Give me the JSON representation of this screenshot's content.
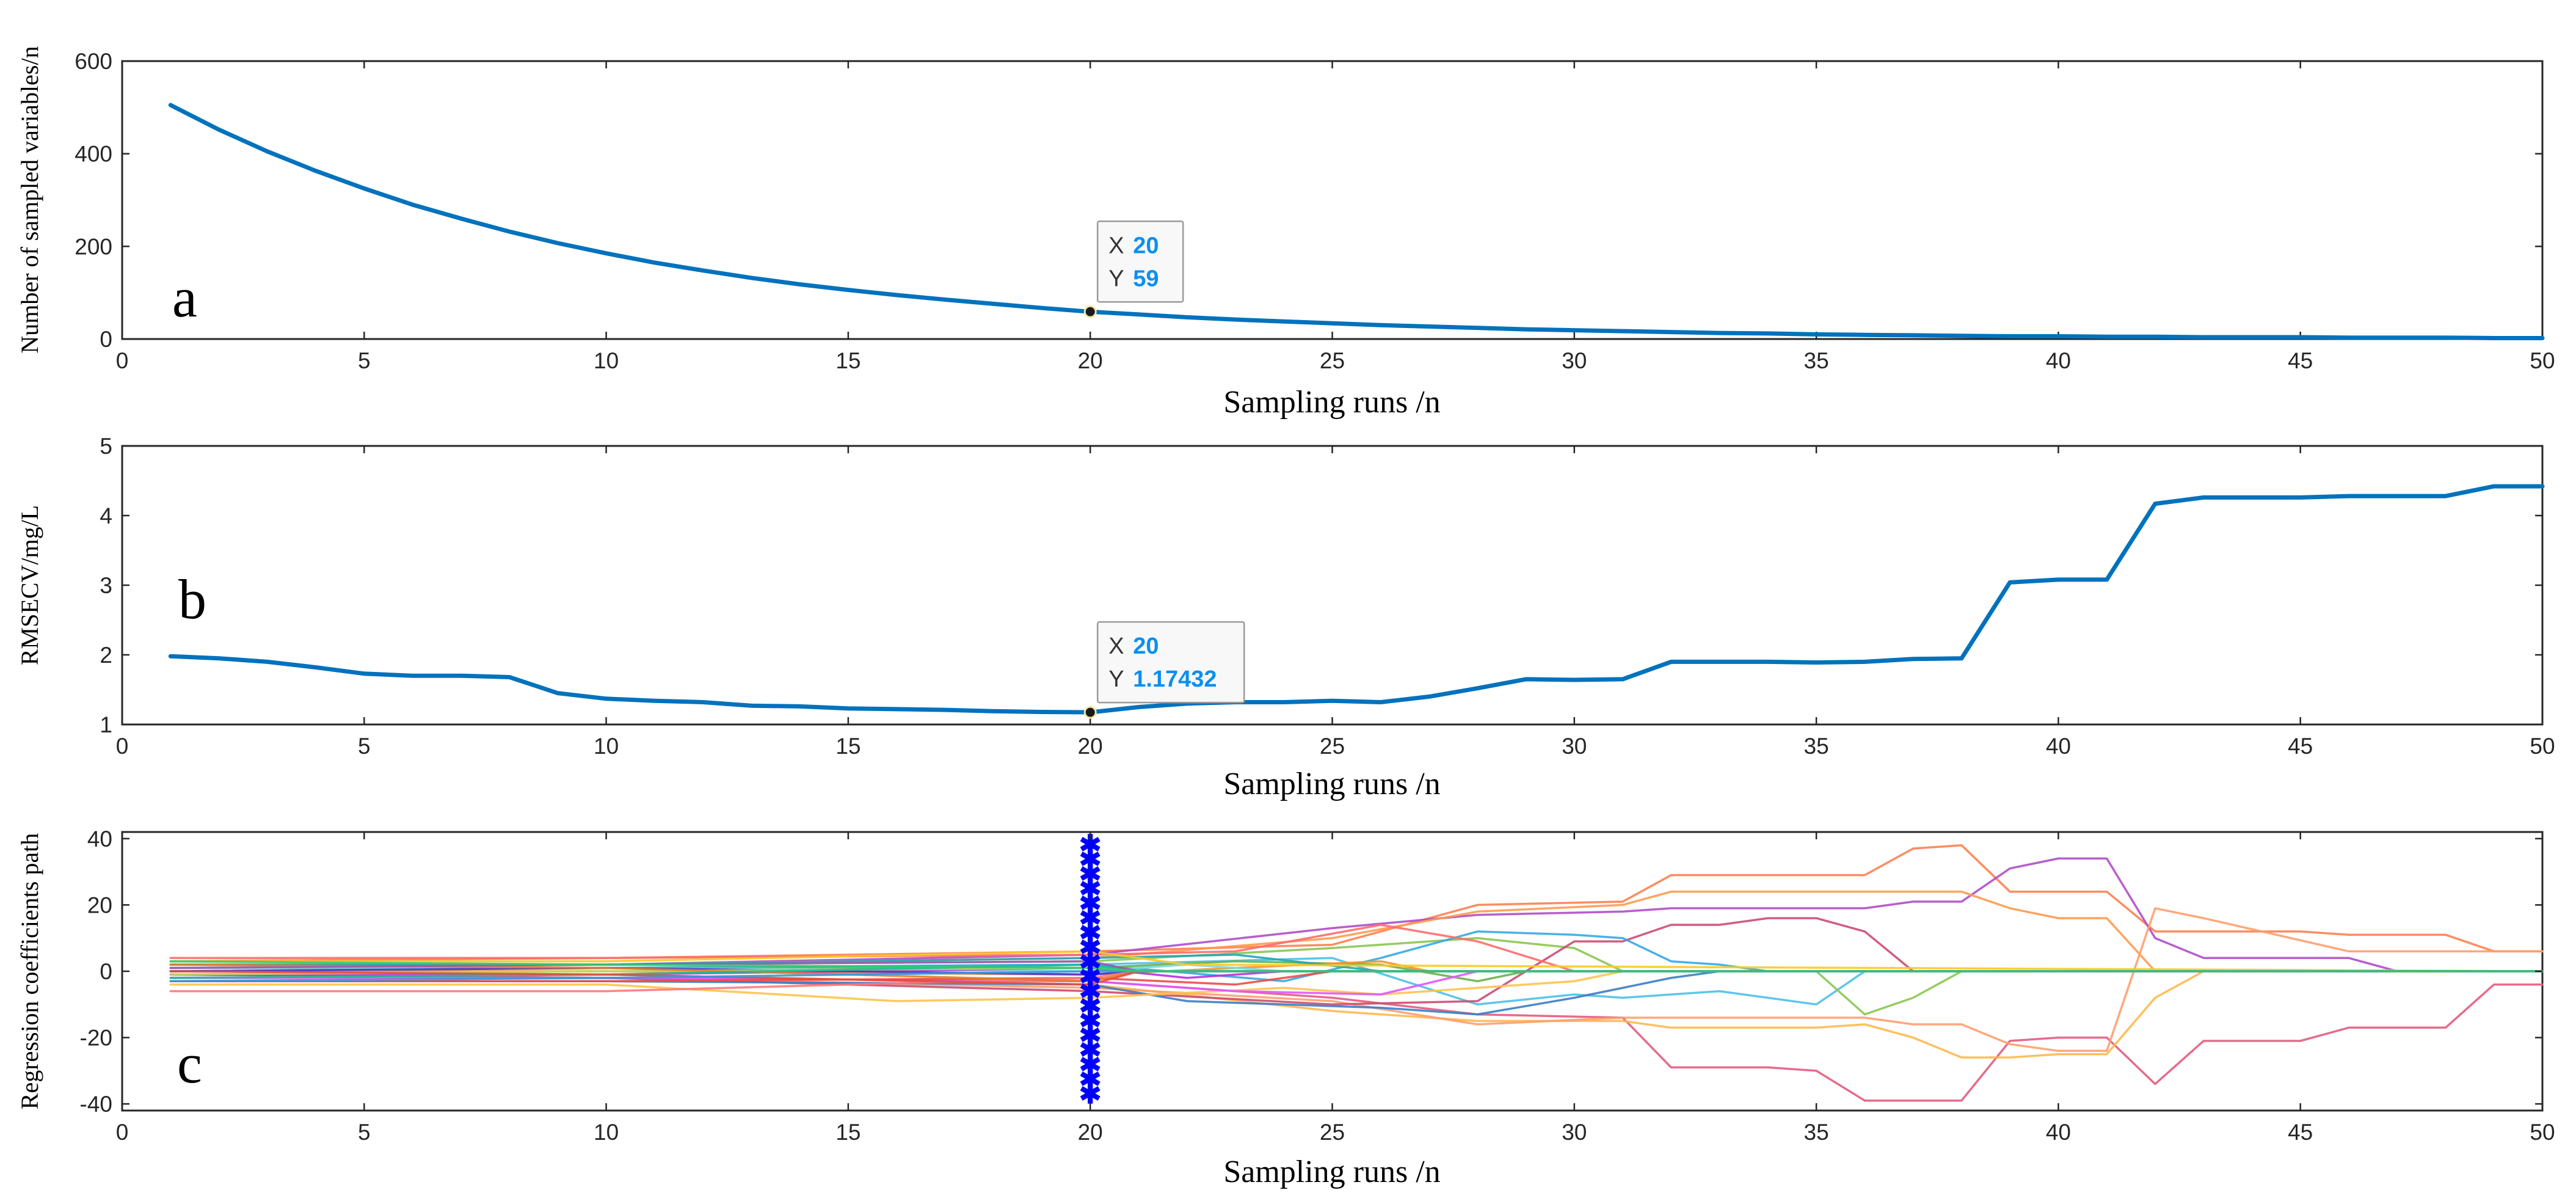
{
  "chart_data": [
    {
      "type": "line",
      "panel_label": "a",
      "xlabel": "Sampling runs /n",
      "ylabel": "Number of sampled variables/n",
      "xlim": [
        0,
        50
      ],
      "ylim": [
        0,
        600
      ],
      "xticks": [
        "0",
        "5",
        "10",
        "15",
        "20",
        "25",
        "30",
        "35",
        "40",
        "45",
        "50"
      ],
      "yticks": [
        "0",
        "200",
        "400",
        "600"
      ],
      "series": [
        {
          "name": "Number of sampled variables",
          "color": "#0072BD",
          "x": [
            1,
            2,
            3,
            4,
            5,
            6,
            7,
            8,
            9,
            10,
            11,
            12,
            13,
            14,
            15,
            16,
            17,
            18,
            19,
            20,
            21,
            22,
            23,
            24,
            25,
            26,
            27,
            28,
            29,
            30,
            31,
            32,
            33,
            34,
            35,
            36,
            37,
            38,
            39,
            40,
            41,
            42,
            43,
            44,
            45,
            46,
            47,
            48,
            49,
            50
          ],
          "values": [
            505,
            452,
            405,
            363,
            325,
            290,
            260,
            232,
            207,
            185,
            165,
            148,
            132,
            118,
            106,
            95,
            85,
            76,
            67,
            59,
            53,
            47,
            42,
            38,
            34,
            30,
            27,
            24,
            21,
            19,
            17,
            15,
            13,
            12,
            10,
            9,
            8,
            7,
            6,
            6,
            5,
            5,
            4,
            4,
            4,
            3,
            3,
            3,
            2,
            2
          ]
        }
      ],
      "datatip": {
        "x_key": "X",
        "x_value": "20",
        "y_key": "Y",
        "y_value": "59",
        "x": 20,
        "y": 59
      }
    },
    {
      "type": "line",
      "panel_label": "b",
      "xlabel": "Sampling runs /n",
      "ylabel": "RMSECV/mg/L",
      "xlim": [
        0,
        50
      ],
      "ylim": [
        1,
        5
      ],
      "xticks": [
        "0",
        "5",
        "10",
        "15",
        "20",
        "25",
        "30",
        "35",
        "40",
        "45",
        "50"
      ],
      "yticks": [
        "1",
        "2",
        "3",
        "4",
        "5"
      ],
      "series": [
        {
          "name": "RMSECV",
          "color": "#0072BD",
          "x": [
            1,
            2,
            3,
            4,
            5,
            6,
            7,
            8,
            9,
            10,
            11,
            12,
            13,
            14,
            15,
            16,
            17,
            18,
            19,
            20,
            21,
            22,
            23,
            24,
            25,
            26,
            27,
            28,
            29,
            30,
            31,
            32,
            33,
            34,
            35,
            36,
            37,
            38,
            39,
            40,
            41,
            42,
            43,
            44,
            45,
            46,
            47,
            48,
            49,
            50
          ],
          "values": [
            1.98,
            1.95,
            1.9,
            1.82,
            1.73,
            1.7,
            1.7,
            1.68,
            1.45,
            1.37,
            1.34,
            1.32,
            1.27,
            1.26,
            1.23,
            1.22,
            1.21,
            1.19,
            1.18,
            1.17432,
            1.25,
            1.3,
            1.32,
            1.32,
            1.34,
            1.32,
            1.4,
            1.52,
            1.65,
            1.64,
            1.65,
            1.9,
            1.9,
            1.9,
            1.89,
            1.9,
            1.94,
            1.95,
            3.04,
            3.08,
            3.08,
            4.17,
            4.26,
            4.26,
            4.26,
            4.28,
            4.28,
            4.28,
            4.42,
            4.42
          ]
        }
      ],
      "datatip": {
        "x_key": "X",
        "x_value": "20",
        "y_key": "Y",
        "y_value": "1.17432",
        "x": 20,
        "y": 1.17432
      }
    },
    {
      "type": "line",
      "panel_label": "c",
      "xlabel": "Sampling runs /n",
      "ylabel": "Regression coefficients path",
      "xlim": [
        0,
        50
      ],
      "ylim": [
        -42,
        42
      ],
      "xticks": [
        "0",
        "5",
        "10",
        "15",
        "20",
        "25",
        "30",
        "35",
        "40",
        "45",
        "50"
      ],
      "yticks": [
        "-40",
        "-20",
        "0",
        "20",
        "40"
      ],
      "marker_line_x": 20,
      "marker_color": "#0000ff",
      "series": [
        {
          "color": "#ff7f50",
          "x": [
            1,
            10,
            20,
            25,
            28,
            31,
            32,
            35,
            36,
            37,
            38,
            39,
            40,
            41,
            42,
            43,
            44,
            45,
            46,
            47,
            48,
            49,
            50
          ],
          "values": [
            3,
            4,
            6,
            8,
            20,
            21,
            29,
            29,
            29,
            37,
            38,
            24,
            24,
            24,
            12,
            12,
            12,
            12,
            11,
            11,
            11,
            6,
            6
          ]
        },
        {
          "color": "#b04dc6",
          "x": [
            1,
            10,
            20,
            25,
            28,
            31,
            32,
            35,
            36,
            37,
            38,
            39,
            40,
            41,
            42,
            43,
            44,
            45,
            46,
            47,
            48,
            49,
            50
          ],
          "values": [
            2,
            2,
            5,
            13,
            17,
            18,
            19,
            19,
            19,
            21,
            21,
            31,
            34,
            34,
            10,
            4,
            4,
            4,
            4,
            0,
            0,
            0,
            0
          ]
        },
        {
          "color": "#e25c7e",
          "x": [
            1,
            10,
            20,
            25,
            28,
            31,
            32,
            33,
            34,
            35,
            36,
            37,
            38,
            39,
            40,
            41,
            42,
            43,
            44,
            45,
            46,
            47,
            48,
            49,
            50
          ],
          "values": [
            -1,
            -2,
            -3,
            -8,
            -13,
            -14,
            -29,
            -29,
            -29,
            -30,
            -39,
            -39,
            -39,
            -21,
            -20,
            -20,
            -34,
            -21,
            -21,
            -21,
            -17,
            -17,
            -17,
            -4,
            -4
          ]
        },
        {
          "color": "#ff9a4d",
          "x": [
            1,
            10,
            20,
            25,
            28,
            31,
            32,
            35,
            36,
            37,
            38,
            39,
            40,
            41,
            42,
            43,
            44,
            45,
            46,
            47,
            48,
            49,
            50
          ],
          "values": [
            1,
            2,
            4,
            10,
            18,
            20,
            24,
            24,
            24,
            24,
            24,
            19,
            16,
            16,
            0,
            0,
            0,
            0,
            0,
            0,
            0,
            0,
            0
          ]
        },
        {
          "color": "#ffb84d",
          "x": [
            1,
            10,
            20,
            25,
            28,
            31,
            32,
            35,
            36,
            37,
            38,
            39,
            40,
            41,
            42,
            43,
            44,
            45,
            46,
            47,
            48,
            49,
            50
          ],
          "values": [
            0,
            -1,
            -4,
            -12,
            -15,
            -15,
            -17,
            -17,
            -16,
            -20,
            -26,
            -26,
            -25,
            -25,
            -8,
            0,
            0,
            0,
            0,
            0,
            0,
            0,
            0
          ]
        },
        {
          "color": "#ff9f6e",
          "x": [
            1,
            10,
            20,
            25,
            28,
            31,
            35,
            36,
            37,
            38,
            39,
            40,
            41,
            42,
            43,
            46,
            47,
            48,
            49,
            50
          ],
          "values": [
            -2,
            -2,
            -5,
            -9,
            -16,
            -14,
            -14,
            -14,
            -16,
            -16,
            -22,
            -24,
            -24,
            19,
            16,
            6,
            6,
            6,
            6,
            6
          ]
        },
        {
          "color": "#4dc0e8",
          "x": [
            1,
            10,
            20,
            25,
            28,
            30,
            31,
            33,
            35,
            36,
            37,
            38,
            39,
            40,
            50
          ],
          "values": [
            0,
            1,
            2,
            4,
            -10,
            -7,
            -8,
            -6,
            -10,
            0,
            0,
            0,
            0,
            0,
            0
          ]
        },
        {
          "color": "#8ac64f",
          "x": [
            1,
            10,
            20,
            25,
            28,
            30,
            31,
            32,
            34,
            35,
            36,
            37,
            38,
            39,
            40,
            50
          ],
          "values": [
            2,
            2,
            3,
            7,
            10,
            7,
            0,
            0,
            0,
            0,
            -13,
            -8,
            0,
            0,
            0,
            0
          ]
        },
        {
          "color": "#cc4b73",
          "x": [
            1,
            10,
            20,
            25,
            28,
            30,
            31,
            32,
            33,
            34,
            35,
            36,
            37,
            38,
            39,
            40,
            50
          ],
          "values": [
            -1,
            -2,
            -6,
            -10,
            -9,
            9,
            9,
            14,
            14,
            16,
            16,
            12,
            0,
            0,
            0,
            0,
            0
          ]
        },
        {
          "color": "#36a9e1",
          "x": [
            1,
            10,
            20,
            24,
            26,
            28,
            30,
            31,
            32,
            33,
            34,
            35,
            36,
            50
          ],
          "values": [
            1,
            1,
            2,
            -3,
            4,
            12,
            11,
            10,
            3,
            2,
            0,
            0,
            0,
            0
          ]
        },
        {
          "color": "#3a7ec4",
          "x": [
            1,
            10,
            20,
            22,
            24,
            26,
            28,
            30,
            32,
            33,
            50
          ],
          "values": [
            -3,
            -3,
            -4,
            -9,
            -10,
            -11,
            -13,
            -8,
            -2,
            0,
            0
          ]
        },
        {
          "color": "#ffc34d",
          "x": [
            1,
            10,
            16,
            20,
            24,
            26,
            28,
            30,
            31,
            50
          ],
          "values": [
            -4,
            -4,
            -9,
            -8,
            -5,
            -7,
            -5,
            -3,
            0,
            0
          ]
        },
        {
          "color": "#ff6b6b",
          "x": [
            1,
            10,
            20,
            23,
            26,
            28,
            30,
            50
          ],
          "values": [
            4,
            4,
            5,
            6,
            14,
            9,
            0,
            0
          ]
        },
        {
          "color": "#6ab04c",
          "x": [
            1,
            10,
            20,
            23,
            26,
            28,
            29,
            50
          ],
          "values": [
            1,
            1,
            1,
            3,
            2,
            -3,
            0,
            0
          ]
        },
        {
          "color": "#e056fd",
          "x": [
            1,
            10,
            20,
            23,
            26,
            28,
            50
          ],
          "values": [
            -2,
            -2,
            -3,
            -6,
            -7,
            0,
            0
          ]
        },
        {
          "color": "#f0932b",
          "x": [
            1,
            10,
            20,
            23,
            26,
            27,
            50
          ],
          "values": [
            0,
            0,
            -1,
            1,
            3,
            0,
            0
          ]
        },
        {
          "color": "#22a6b3",
          "x": [
            1,
            10,
            20,
            23,
            26,
            50
          ],
          "values": [
            2,
            2,
            4,
            5,
            0,
            0
          ]
        },
        {
          "color": "#eb4d4b",
          "x": [
            1,
            10,
            20,
            23,
            25,
            50
          ],
          "values": [
            -3,
            -3,
            -2,
            -4,
            0,
            0
          ]
        },
        {
          "color": "#7ed6df",
          "x": [
            1,
            10,
            20,
            22,
            24,
            50
          ],
          "values": [
            1,
            1,
            0,
            2,
            0,
            0
          ]
        },
        {
          "color": "#be2edd",
          "x": [
            1,
            10,
            20,
            22,
            24,
            50
          ],
          "values": [
            -1,
            -1,
            1,
            -2,
            0,
            0
          ]
        },
        {
          "color": "#f9ca24",
          "x": [
            1,
            10,
            20,
            22,
            50
          ],
          "values": [
            3,
            3,
            6,
            2,
            0
          ]
        },
        {
          "color": "#4834d4",
          "x": [
            1,
            10,
            20,
            21,
            50
          ],
          "values": [
            0,
            1,
            -1,
            0,
            0
          ]
        },
        {
          "color": "#ff7979",
          "x": [
            1,
            10,
            20,
            21,
            50
          ],
          "values": [
            -6,
            -6,
            -2,
            0,
            0
          ]
        },
        {
          "color": "#badc58",
          "x": [
            1,
            10,
            20,
            21,
            50
          ],
          "values": [
            -1,
            0,
            1,
            0,
            0
          ]
        },
        {
          "color": "#e67e22",
          "x": [
            1,
            10,
            20,
            21,
            50
          ],
          "values": [
            2,
            1,
            -3,
            0,
            0
          ]
        },
        {
          "color": "#1abc9c",
          "x": [
            1,
            10,
            20,
            21,
            50
          ],
          "values": [
            -2,
            -1,
            2,
            0,
            0
          ]
        },
        {
          "color": "#9b59b6",
          "x": [
            1,
            10,
            20,
            21,
            50
          ],
          "values": [
            1,
            2,
            3,
            0,
            0
          ]
        },
        {
          "color": "#e74c3c",
          "x": [
            1,
            10,
            20,
            21,
            50
          ],
          "values": [
            0,
            -1,
            -4,
            0,
            0
          ]
        },
        {
          "color": "#3498db",
          "x": [
            1,
            10,
            20,
            21,
            50
          ],
          "values": [
            -3,
            -2,
            0,
            0,
            0
          ]
        },
        {
          "color": "#2ecc71",
          "x": [
            1,
            10,
            20,
            21,
            50
          ],
          "values": [
            3,
            2,
            1,
            0,
            0
          ]
        }
      ]
    }
  ]
}
